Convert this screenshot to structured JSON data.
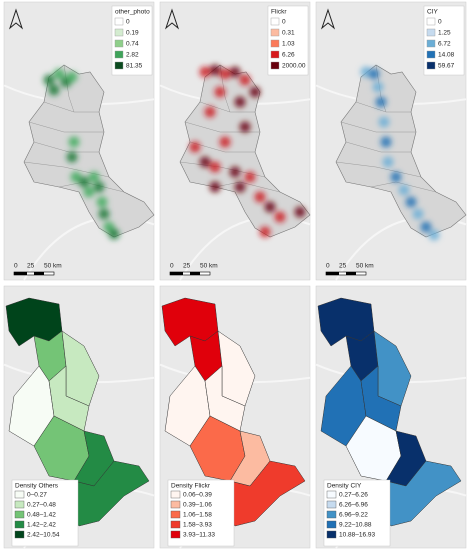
{
  "panels": [
    {
      "legend": {
        "title": "other_photo",
        "items": [
          {
            "label": "0",
            "color": "#ffffff"
          },
          {
            "label": "0.19",
            "color": "#d4ecd0"
          },
          {
            "label": "0.74",
            "color": "#8fcf8a"
          },
          {
            "label": "2.82",
            "color": "#3fa35a"
          },
          {
            "label": "81.35",
            "color": "#0b4a1f"
          }
        ]
      },
      "scale_bar": {
        "labels": [
          "0",
          "25",
          "50 km"
        ]
      }
    },
    {
      "legend": {
        "title": "Flickr",
        "items": [
          {
            "label": "0",
            "color": "#ffffff"
          },
          {
            "label": "0.31",
            "color": "#fcbba1"
          },
          {
            "label": "1.03",
            "color": "#fb7a5a"
          },
          {
            "label": "6.26",
            "color": "#d7191c"
          },
          {
            "label": "2000.00",
            "color": "#67000d"
          }
        ]
      },
      "scale_bar": {
        "labels": [
          "0",
          "25",
          "50 km"
        ]
      }
    },
    {
      "legend": {
        "title": "CIY",
        "items": [
          {
            "label": "0",
            "color": "#ffffff"
          },
          {
            "label": "1.25",
            "color": "#c6dbef"
          },
          {
            "label": "6.72",
            "color": "#6baed6"
          },
          {
            "label": "14.08",
            "color": "#2171b5"
          },
          {
            "label": "59.67",
            "color": "#08306b"
          }
        ]
      },
      "scale_bar": {
        "labels": [
          "0",
          "25",
          "50 km"
        ]
      }
    },
    {
      "legend": {
        "title": "Density Others",
        "items": [
          {
            "label": "0–0.27",
            "color": "#f7fcf5"
          },
          {
            "label": "0.27–0.48",
            "color": "#c7e9c0"
          },
          {
            "label": "0.48–1.42",
            "color": "#74c476"
          },
          {
            "label": "1.42–2.42",
            "color": "#238b45"
          },
          {
            "label": "2.42–10.54",
            "color": "#00441b"
          }
        ]
      }
    },
    {
      "legend": {
        "title": "Density Flickr",
        "items": [
          {
            "label": "0.06–0.39",
            "color": "#fff5f0"
          },
          {
            "label": "0.39–1.06",
            "color": "#fcbba1"
          },
          {
            "label": "1.06–1.58",
            "color": "#fb6a4a"
          },
          {
            "label": "1.58–3.93",
            "color": "#ef3b2c"
          },
          {
            "label": "3.93–11.33",
            "color": "#e0000b"
          }
        ]
      }
    },
    {
      "legend": {
        "title": "Density CIY",
        "items": [
          {
            "label": "0.27–6.26",
            "color": "#f7fbff"
          },
          {
            "label": "6.26–6.96",
            "color": "#c6dbef"
          },
          {
            "label": "6.96–9.22",
            "color": "#4292c6"
          },
          {
            "label": "9.22–10.88",
            "color": "#2171b5"
          },
          {
            "label": "10.88–16.93",
            "color": "#08306b"
          }
        ]
      }
    }
  ]
}
